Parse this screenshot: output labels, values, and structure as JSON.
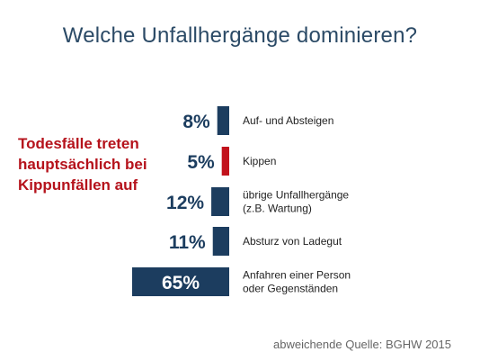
{
  "chart_data": {
    "type": "bar",
    "orientation": "horizontal",
    "title": "Welche Unfallhergänge dominieren?",
    "annotation": [
      "Todesfälle treten",
      "hauptsächlich bei",
      "Kippunfällen auf"
    ],
    "source": "abweichende Quelle: BGHW 2015",
    "categories": [
      [
        "Auf- und Absteigen"
      ],
      [
        "Kippen"
      ],
      [
        "übrige Unfallhergänge",
        "(z.B. Wartung)"
      ],
      [
        "Absturz von Ladegut"
      ],
      [
        "Anfahren einer Person",
        "oder Gegenständen"
      ]
    ],
    "values": [
      8,
      5,
      12,
      11,
      65
    ],
    "value_labels": [
      "8%",
      "5%",
      "12%",
      "11%",
      "65%"
    ],
    "colors": [
      "#1c3d5f",
      "#c2121c",
      "#1c3d5f",
      "#1c3d5f",
      "#1c3d5f"
    ],
    "highlight_index": 1,
    "xlim": [
      0,
      65
    ],
    "grid": false,
    "legend": "none"
  }
}
